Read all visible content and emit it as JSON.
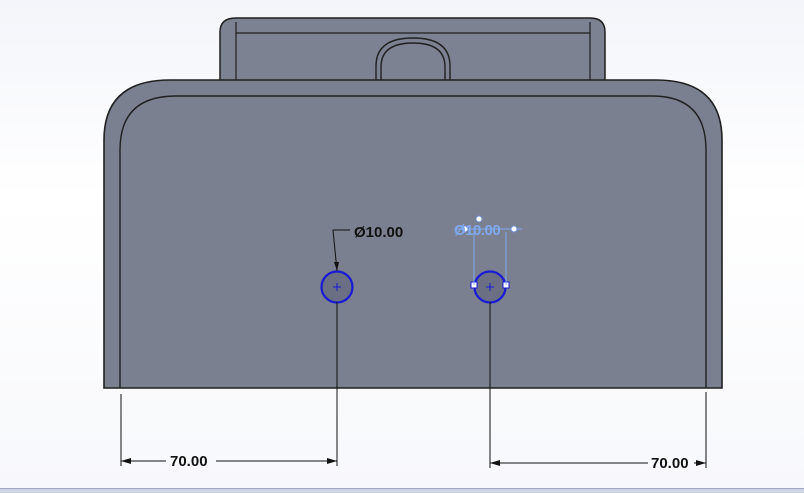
{
  "sketch": {
    "hole_diameter_label": "Ø10.00",
    "hole_diameter_active_label": "Ø10.00",
    "left_distance_label": "70.00",
    "right_distance_label": "70.00"
  },
  "colors": {
    "part_face": "#7b8090",
    "part_edge": "#202020",
    "selected_circle": "#1a1ad6",
    "active_dimension": "#7fa9f0",
    "dimension_line": "#111111"
  }
}
